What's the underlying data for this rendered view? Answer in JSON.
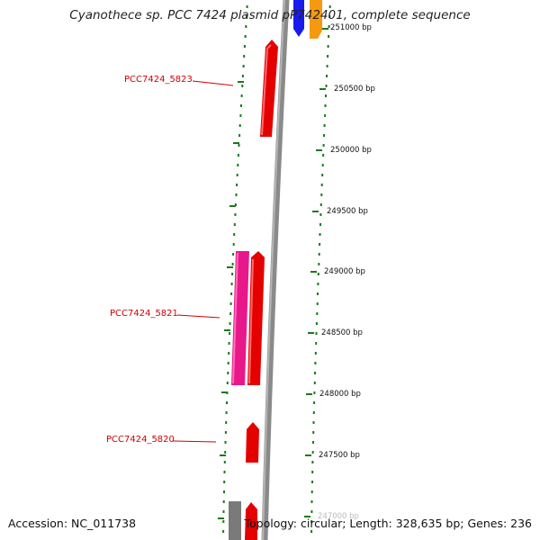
{
  "title": "Cyanothece sp. PCC 7424 plasmid pP742401, complete sequence",
  "footer": {
    "accession": "Accession: NC_011738",
    "summary": "Topology: circular; Length: 328,635 bp; Genes: 236"
  },
  "gene_labels": [
    "PCC7424_5823",
    "PCC7424_5821",
    "PCC7424_5820"
  ],
  "scale_labels": [
    "251000 bp",
    "250500 bp",
    "250000 bp",
    "249500 bp",
    "249000 bp",
    "248500 bp",
    "248000 bp",
    "247500 bp",
    "247000 bp"
  ],
  "colors": {
    "gene": "#e50000",
    "gene_highlight": "#ff3333",
    "pseudo_gene": "#e8188a",
    "backbone": "#7a7a7a",
    "tick_green": "#1a7a1a",
    "blue_feature": "#1a1aee",
    "orange_feature": "#f59a10",
    "label_red": "#d00000"
  }
}
